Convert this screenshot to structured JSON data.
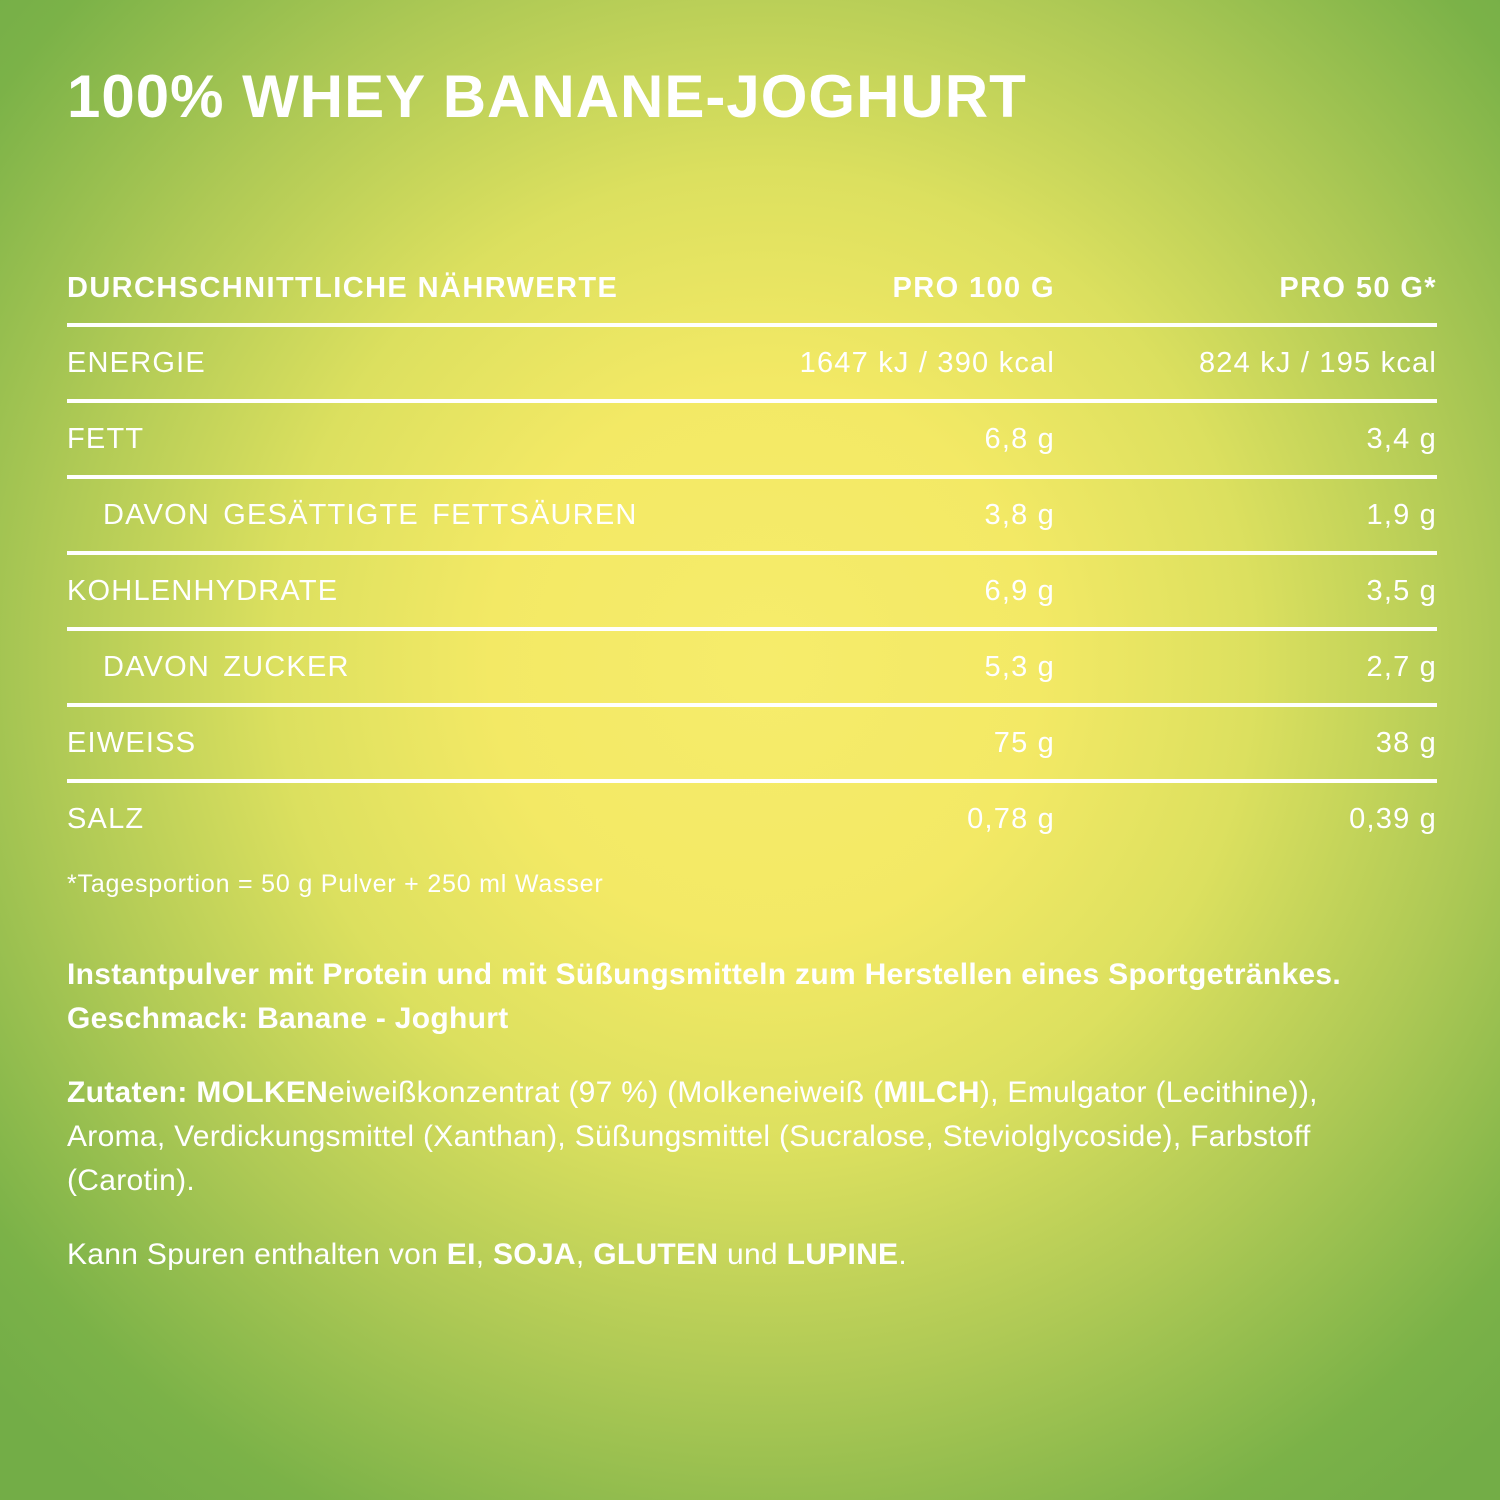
{
  "title": "100% WHEY BANANE-JOGHURT",
  "colors": {
    "text": "#ffffff",
    "gradient_center_yellow": "#f5eb69",
    "gradient_edge_green": "#74ae47",
    "table_rule": "#ffffff"
  },
  "table": {
    "headers": [
      "DURCHSCHNITTLICHE NÄHRWERTE",
      "PRO 100 G",
      "PRO 50 G*"
    ],
    "rows": [
      {
        "label": "ENERGIE",
        "per100": "1647 kJ / 390 kcal",
        "per50": "824 kJ / 195 kcal",
        "indent": false
      },
      {
        "label": "FETT",
        "per100": "6,8 g",
        "per50": "3,4 g",
        "indent": false
      },
      {
        "label": "DAVON GESÄTTIGTE FETTSÄUREN",
        "per100": "3,8 g",
        "per50": "1,9 g",
        "indent": true
      },
      {
        "label": "KOHLENHYDRATE",
        "per100": "6,9 g",
        "per50": "3,5 g",
        "indent": false
      },
      {
        "label": "DAVON ZUCKER",
        "per100": "5,3 g",
        "per50": "2,7 g",
        "indent": true
      },
      {
        "label": "EIWEISS",
        "per100": "75 g",
        "per50": "38 g",
        "indent": false
      },
      {
        "label": "SALZ",
        "per100": "0,78 g",
        "per50": "0,39 g",
        "indent": false
      }
    ],
    "footnote": "*Tagesportion = 50 g Pulver + 250 ml Wasser"
  },
  "description": "Instantpulver mit Protein und mit Süßungsmitteln zum Herstellen eines Sportgetränkes. Geschmack: Banane - Joghurt",
  "ingredients": {
    "segments": [
      {
        "text": "Zutaten: MOLKEN",
        "bold": true
      },
      {
        "text": "eiweißkonzentrat (97 %) (Molkeneiweiß (",
        "bold": false
      },
      {
        "text": "MILCH",
        "bold": true
      },
      {
        "text": "), Emulgator (Lecithine)), Aroma, Verdickungsmittel (Xanthan), Süßungsmittel (Sucralose, Steviolglycoside), Farbstoff (Carotin).",
        "bold": false
      }
    ]
  },
  "allergens": {
    "segments": [
      {
        "text": "Kann Spuren enthalten von ",
        "bold": false
      },
      {
        "text": "EI",
        "bold": true
      },
      {
        "text": ", ",
        "bold": false
      },
      {
        "text": "SOJA",
        "bold": true
      },
      {
        "text": ", ",
        "bold": false
      },
      {
        "text": "GLUTEN",
        "bold": true
      },
      {
        "text": " und ",
        "bold": false
      },
      {
        "text": "LUPINE",
        "bold": true
      },
      {
        "text": ".",
        "bold": false
      }
    ]
  }
}
